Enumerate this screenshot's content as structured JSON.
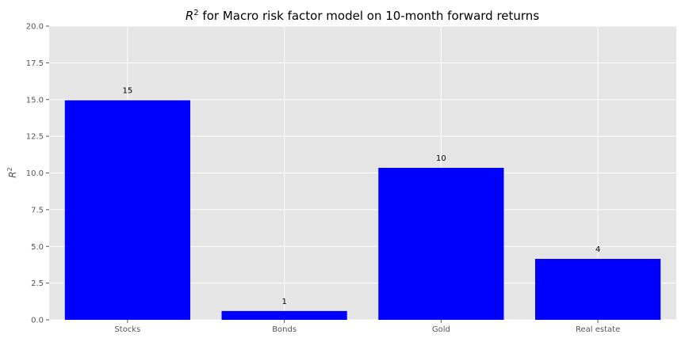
{
  "chart_data": {
    "type": "bar",
    "title_parts": {
      "base": "R",
      "superscript": "2",
      "rest": " for Macro risk factor model on 10-month forward returns"
    },
    "ylabel_parts": {
      "base": "R",
      "superscript": "2"
    },
    "xlabel": "",
    "categories": [
      "Stocks",
      "Bonds",
      "Gold",
      "Real estate"
    ],
    "values": [
      14.95,
      0.6,
      10.35,
      4.15
    ],
    "data_labels": [
      "15",
      "1",
      "10",
      "4"
    ],
    "ylim": [
      0,
      20
    ],
    "yticks": [
      0,
      2.5,
      5,
      7.5,
      10,
      12.5,
      15,
      17.5,
      20
    ],
    "ytick_labels": [
      "0.0",
      "2.5",
      "5.0",
      "7.5",
      "10.0",
      "12.5",
      "15.0",
      "17.5",
      "20.0"
    ],
    "grid": true,
    "legend": "none",
    "bar_color": "#0000ff",
    "background_color": "#e5e5e5",
    "grid_color": "#ffffff"
  }
}
